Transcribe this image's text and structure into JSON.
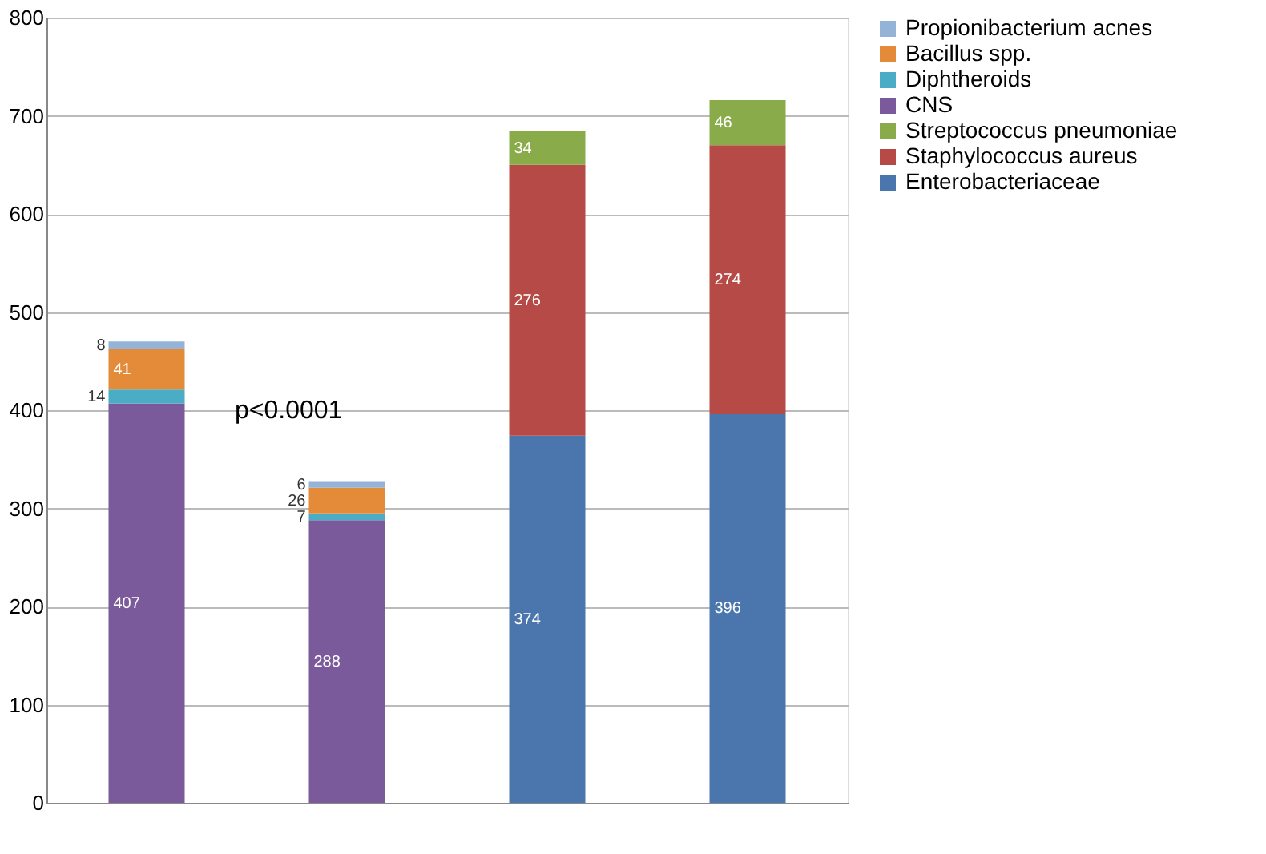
{
  "chart_data": {
    "type": "bar",
    "stacked": true,
    "categories": [
      null,
      null,
      null,
      null
    ],
    "series": [
      {
        "name": "Enterobacteriaceae",
        "color": "#4a76ad",
        "values": [
          null,
          null,
          374,
          396
        ]
      },
      {
        "name": "Staphylococcus aureus",
        "color": "#b54a46",
        "values": [
          null,
          null,
          276,
          274
        ]
      },
      {
        "name": "Streptococcus pneumoniae",
        "color": "#8aab4a",
        "values": [
          null,
          null,
          34,
          46
        ]
      },
      {
        "name": "CNS",
        "color": "#7a5a9a",
        "values": [
          407,
          288,
          null,
          null
        ]
      },
      {
        "name": "Diphtheroids",
        "color": "#4bacc6",
        "values": [
          14,
          7,
          null,
          null
        ]
      },
      {
        "name": "Bacillus spp.",
        "color": "#e48b3a",
        "values": [
          41,
          26,
          null,
          null
        ]
      },
      {
        "name": "Propionibacterium acnes",
        "color": "#95b3d7",
        "values": [
          8,
          6,
          null,
          null
        ]
      }
    ],
    "ylim": [
      0,
      800
    ],
    "yticks": [
      0,
      100,
      200,
      300,
      400,
      500,
      600,
      700,
      800
    ],
    "grid": "y",
    "legend": "right",
    "tick_labels": "y",
    "data_labels": true,
    "annotations": [
      "p<0.0001"
    ]
  }
}
